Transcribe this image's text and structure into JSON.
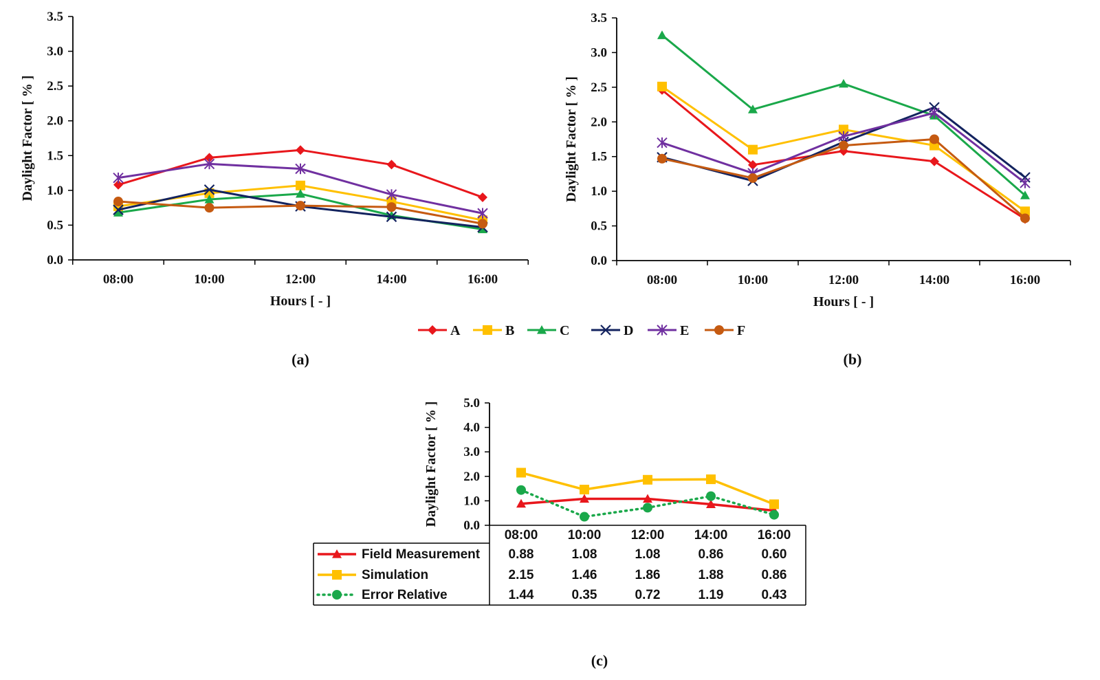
{
  "legend": {
    "entries": [
      {
        "name": "A",
        "color": "#e8171c",
        "marker": "diamond"
      },
      {
        "name": "B",
        "color": "#ffc000",
        "marker": "square"
      },
      {
        "name": "C",
        "color": "#1aa84a",
        "marker": "triangle"
      },
      {
        "name": "D",
        "color": "#13235f",
        "marker": "x"
      },
      {
        "name": "E",
        "color": "#7030a0",
        "marker": "star"
      },
      {
        "name": "F",
        "color": "#c55a11",
        "marker": "circle"
      }
    ]
  },
  "chart_data": [
    {
      "type": "line",
      "panel_label": "(a)",
      "xlabel": "Hours [ - ]",
      "ylabel": "Daylight Factor [ % ]",
      "categories": [
        "08:00",
        "10:00",
        "12:00",
        "14:00",
        "16:00"
      ],
      "ylim": [
        0,
        3.5
      ],
      "yticks": [
        "0.0",
        "0.5",
        "1.0",
        "1.5",
        "2.0",
        "2.5",
        "3.0",
        "3.5"
      ],
      "series": [
        {
          "name": "A",
          "values": [
            1.08,
            1.47,
            1.58,
            1.37,
            0.9
          ]
        },
        {
          "name": "B",
          "values": [
            0.77,
            0.96,
            1.07,
            0.84,
            0.57
          ]
        },
        {
          "name": "C",
          "values": [
            0.68,
            0.87,
            0.95,
            0.64,
            0.44
          ]
        },
        {
          "name": "D",
          "values": [
            0.72,
            1.01,
            0.77,
            0.62,
            0.47
          ]
        },
        {
          "name": "E",
          "values": [
            1.18,
            1.38,
            1.31,
            0.94,
            0.67
          ]
        },
        {
          "name": "F",
          "values": [
            0.84,
            0.75,
            0.78,
            0.76,
            0.52
          ]
        }
      ]
    },
    {
      "type": "line",
      "panel_label": "(b)",
      "xlabel": "Hours [ - ]",
      "ylabel": "Daylight Factor [ % ]",
      "categories": [
        "08:00",
        "10:00",
        "12:00",
        "14:00",
        "16:00"
      ],
      "ylim": [
        0,
        3.5
      ],
      "yticks": [
        "0.0",
        "0.5",
        "1.0",
        "1.5",
        "2.0",
        "2.5",
        "3.0",
        "3.5"
      ],
      "series": [
        {
          "name": "A",
          "values": [
            2.46,
            1.38,
            1.58,
            1.43,
            0.6
          ]
        },
        {
          "name": "B",
          "values": [
            2.51,
            1.6,
            1.89,
            1.66,
            0.71
          ]
        },
        {
          "name": "C",
          "values": [
            3.25,
            2.18,
            2.55,
            2.09,
            0.94
          ]
        },
        {
          "name": "D",
          "values": [
            1.49,
            1.15,
            1.71,
            2.21,
            1.2
          ]
        },
        {
          "name": "E",
          "values": [
            1.7,
            1.26,
            1.79,
            2.13,
            1.12
          ]
        },
        {
          "name": "F",
          "values": [
            1.47,
            1.19,
            1.66,
            1.75,
            0.61
          ]
        }
      ]
    },
    {
      "type": "line",
      "panel_label": "(c)",
      "ylabel": "Daylight Factor [ % ]",
      "categories": [
        "08:00",
        "10:00",
        "12:00",
        "14:00",
        "16:00"
      ],
      "ylim": [
        0,
        5.0
      ],
      "yticks": [
        "0.0",
        "1.0",
        "2.0",
        "3.0",
        "4.0",
        "5.0"
      ],
      "series": [
        {
          "name": "Field Measurement",
          "color": "#e8171c",
          "marker": "triangle",
          "dash": "solid",
          "values": [
            0.88,
            1.08,
            1.08,
            0.86,
            0.6
          ],
          "labels": [
            "0.88",
            "1.08",
            "1.08",
            "0.86",
            "0.60"
          ]
        },
        {
          "name": "Simulation",
          "color": "#ffc000",
          "marker": "square",
          "dash": "solid",
          "values": [
            2.15,
            1.46,
            1.86,
            1.88,
            0.86
          ],
          "labels": [
            "2.15",
            "1.46",
            "1.86",
            "1.88",
            "0.86"
          ]
        },
        {
          "name": "Error Relative",
          "color": "#1aa84a",
          "marker": "circle",
          "dash": "dotted",
          "values": [
            1.44,
            0.35,
            0.72,
            1.19,
            0.43
          ],
          "labels": [
            "1.44",
            "0.35",
            "0.72",
            "1.19",
            "0.43"
          ]
        }
      ]
    }
  ]
}
